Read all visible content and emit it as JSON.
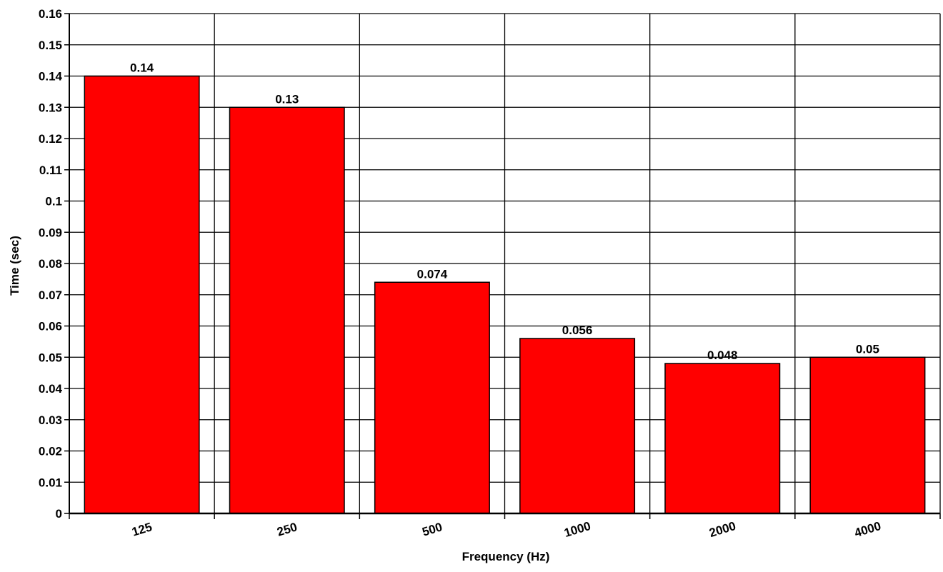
{
  "chart_data": {
    "type": "bar",
    "title": "",
    "xlabel": "Frequency (Hz)",
    "ylabel": "Time (sec)",
    "categories": [
      "125",
      "250",
      "500",
      "1000",
      "2000",
      "4000"
    ],
    "values": [
      0.14,
      0.13,
      0.074,
      0.056,
      0.048,
      0.05
    ],
    "value_labels": [
      "0.14",
      "0.13",
      "0.074",
      "0.056",
      "0.048",
      "0.05"
    ],
    "yticks": [
      "0",
      "0.01",
      "0.02",
      "0.03",
      "0.04",
      "0.05",
      "0.06",
      "0.07",
      "0.08",
      "0.09",
      "0.1",
      "0.11",
      "0.12",
      "0.13",
      "0.14",
      "0.15",
      "0.16"
    ],
    "ylim": [
      0,
      0.16
    ],
    "grid": true,
    "bar_color": "#ff0000"
  }
}
